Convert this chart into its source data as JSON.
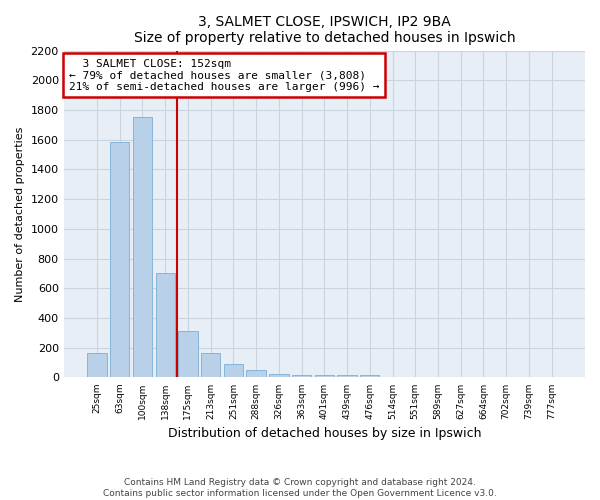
{
  "title1": "3, SALMET CLOSE, IPSWICH, IP2 9BA",
  "title2": "Size of property relative to detached houses in Ipswich",
  "xlabel": "Distribution of detached houses by size in Ipswich",
  "ylabel": "Number of detached properties",
  "footnote1": "Contains HM Land Registry data © Crown copyright and database right 2024.",
  "footnote2": "Contains public sector information licensed under the Open Government Licence v3.0.",
  "annotation_line1": "  3 SALMET CLOSE: 152sqm",
  "annotation_line2": "← 79% of detached houses are smaller (3,808)",
  "annotation_line3": "21% of semi-detached houses are larger (996) →",
  "bar_color": "#b8d0e8",
  "bar_edge_color": "#7aafd4",
  "vline_color": "#cc0000",
  "vline_x": 3.5,
  "categories": [
    "25sqm",
    "63sqm",
    "100sqm",
    "138sqm",
    "175sqm",
    "213sqm",
    "251sqm",
    "288sqm",
    "326sqm",
    "363sqm",
    "401sqm",
    "439sqm",
    "476sqm",
    "514sqm",
    "551sqm",
    "589sqm",
    "627sqm",
    "664sqm",
    "702sqm",
    "739sqm",
    "777sqm"
  ],
  "values": [
    163,
    1585,
    1750,
    700,
    315,
    163,
    88,
    50,
    25,
    13,
    13,
    13,
    13,
    0,
    0,
    0,
    0,
    0,
    0,
    0,
    0
  ],
  "ylim": [
    0,
    2200
  ],
  "yticks": [
    0,
    200,
    400,
    600,
    800,
    1000,
    1200,
    1400,
    1600,
    1800,
    2000,
    2200
  ],
  "bg_color": "#e8eef5",
  "fig_bg_color": "#ffffff",
  "annotation_box_color": "#ffffff",
  "annotation_box_edge": "#cc0000",
  "grid_color": "#c8d4e0"
}
